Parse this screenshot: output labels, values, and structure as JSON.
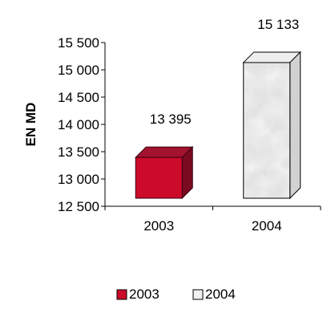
{
  "chart_data": {
    "type": "bar",
    "title": "",
    "xlabel": "",
    "ylabel": "EN MD",
    "categories": [
      "2003",
      "2004"
    ],
    "series": [
      {
        "name": "2003",
        "values": [
          13395,
          null
        ],
        "color": "#cc0a2a",
        "pattern": "solid"
      },
      {
        "name": "2004",
        "values": [
          null,
          15133
        ],
        "color": "#e6e6e6",
        "pattern": "marble"
      }
    ],
    "data_labels": [
      "13 395",
      "15 133"
    ],
    "ylim": [
      12500,
      15500
    ],
    "yticks": [
      12500,
      13000,
      13500,
      14000,
      14500,
      15000,
      15500
    ],
    "ytick_labels": [
      "12 500",
      "13 000",
      "13 500",
      "14 000",
      "14 500",
      "15 000",
      "15 500"
    ],
    "legend": {
      "position": "bottom",
      "entries": [
        "2003",
        "2004"
      ]
    },
    "grid": false,
    "style": "3d-bar"
  }
}
